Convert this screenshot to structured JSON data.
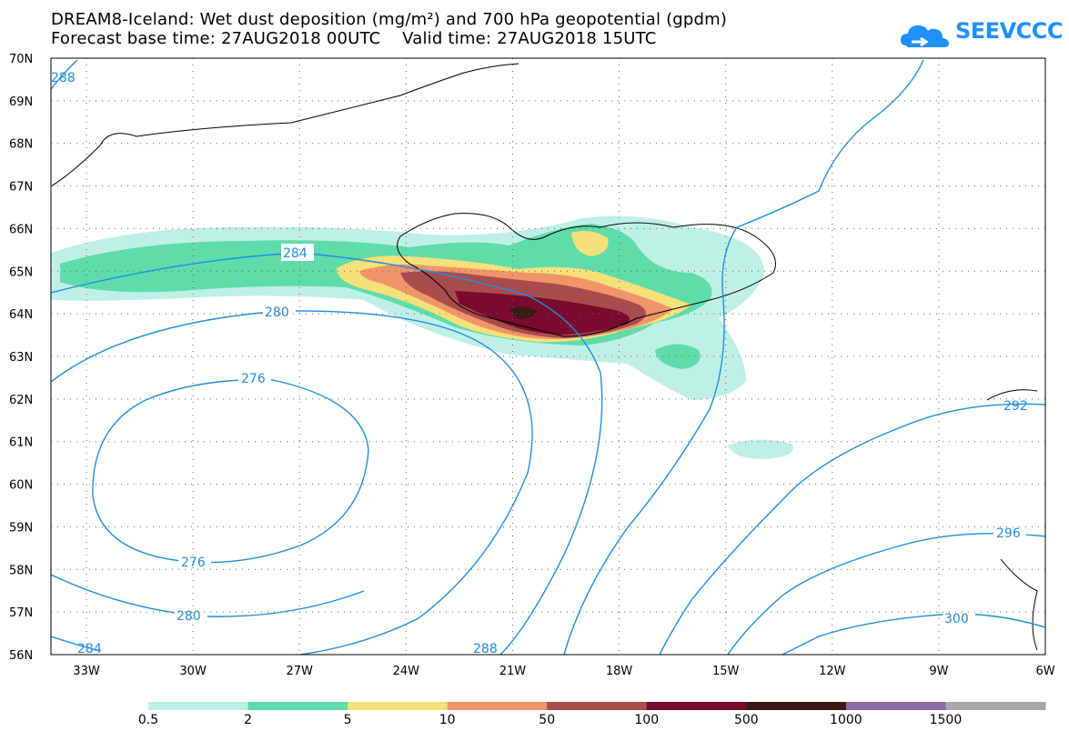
{
  "title_line1": "DREAM8-Iceland: Wet dust deposition (mg/m²) and 700 hPa geopotential (gpdm)",
  "title_line2": "Forecast base time: 27AUG2018 00UTC    Valid time: 27AUG2018 15UTC",
  "logo": {
    "text": "SEEVCCC",
    "icon": "cloud-icon",
    "color": "#1e90ff"
  },
  "map": {
    "lat_labels": [
      "70N",
      "69N",
      "68N",
      "67N",
      "66N",
      "65N",
      "64N",
      "63N",
      "62N",
      "61N",
      "60N",
      "59N",
      "58N",
      "57N",
      "56N"
    ],
    "lon_labels": [
      "33W",
      "30W",
      "27W",
      "24W",
      "21W",
      "18W",
      "15W",
      "12W",
      "9W",
      "6W"
    ],
    "contour_color": "#1e8fe0",
    "contour_labels": [
      "288",
      "284",
      "280",
      "276",
      "276",
      "280",
      "284",
      "288",
      "292",
      "296",
      "300"
    ]
  },
  "colorbar": {
    "colors": [
      "#bff0e6",
      "#5fdcaa",
      "#f5e07a",
      "#f0956a",
      "#a84c4e",
      "#7a0a2e",
      "#3a1a14",
      "#8a6aa0",
      "#a8a8a8"
    ],
    "labels": [
      "0.5",
      "2",
      "5",
      "10",
      "50",
      "100",
      "500",
      "1000",
      "1500"
    ]
  }
}
